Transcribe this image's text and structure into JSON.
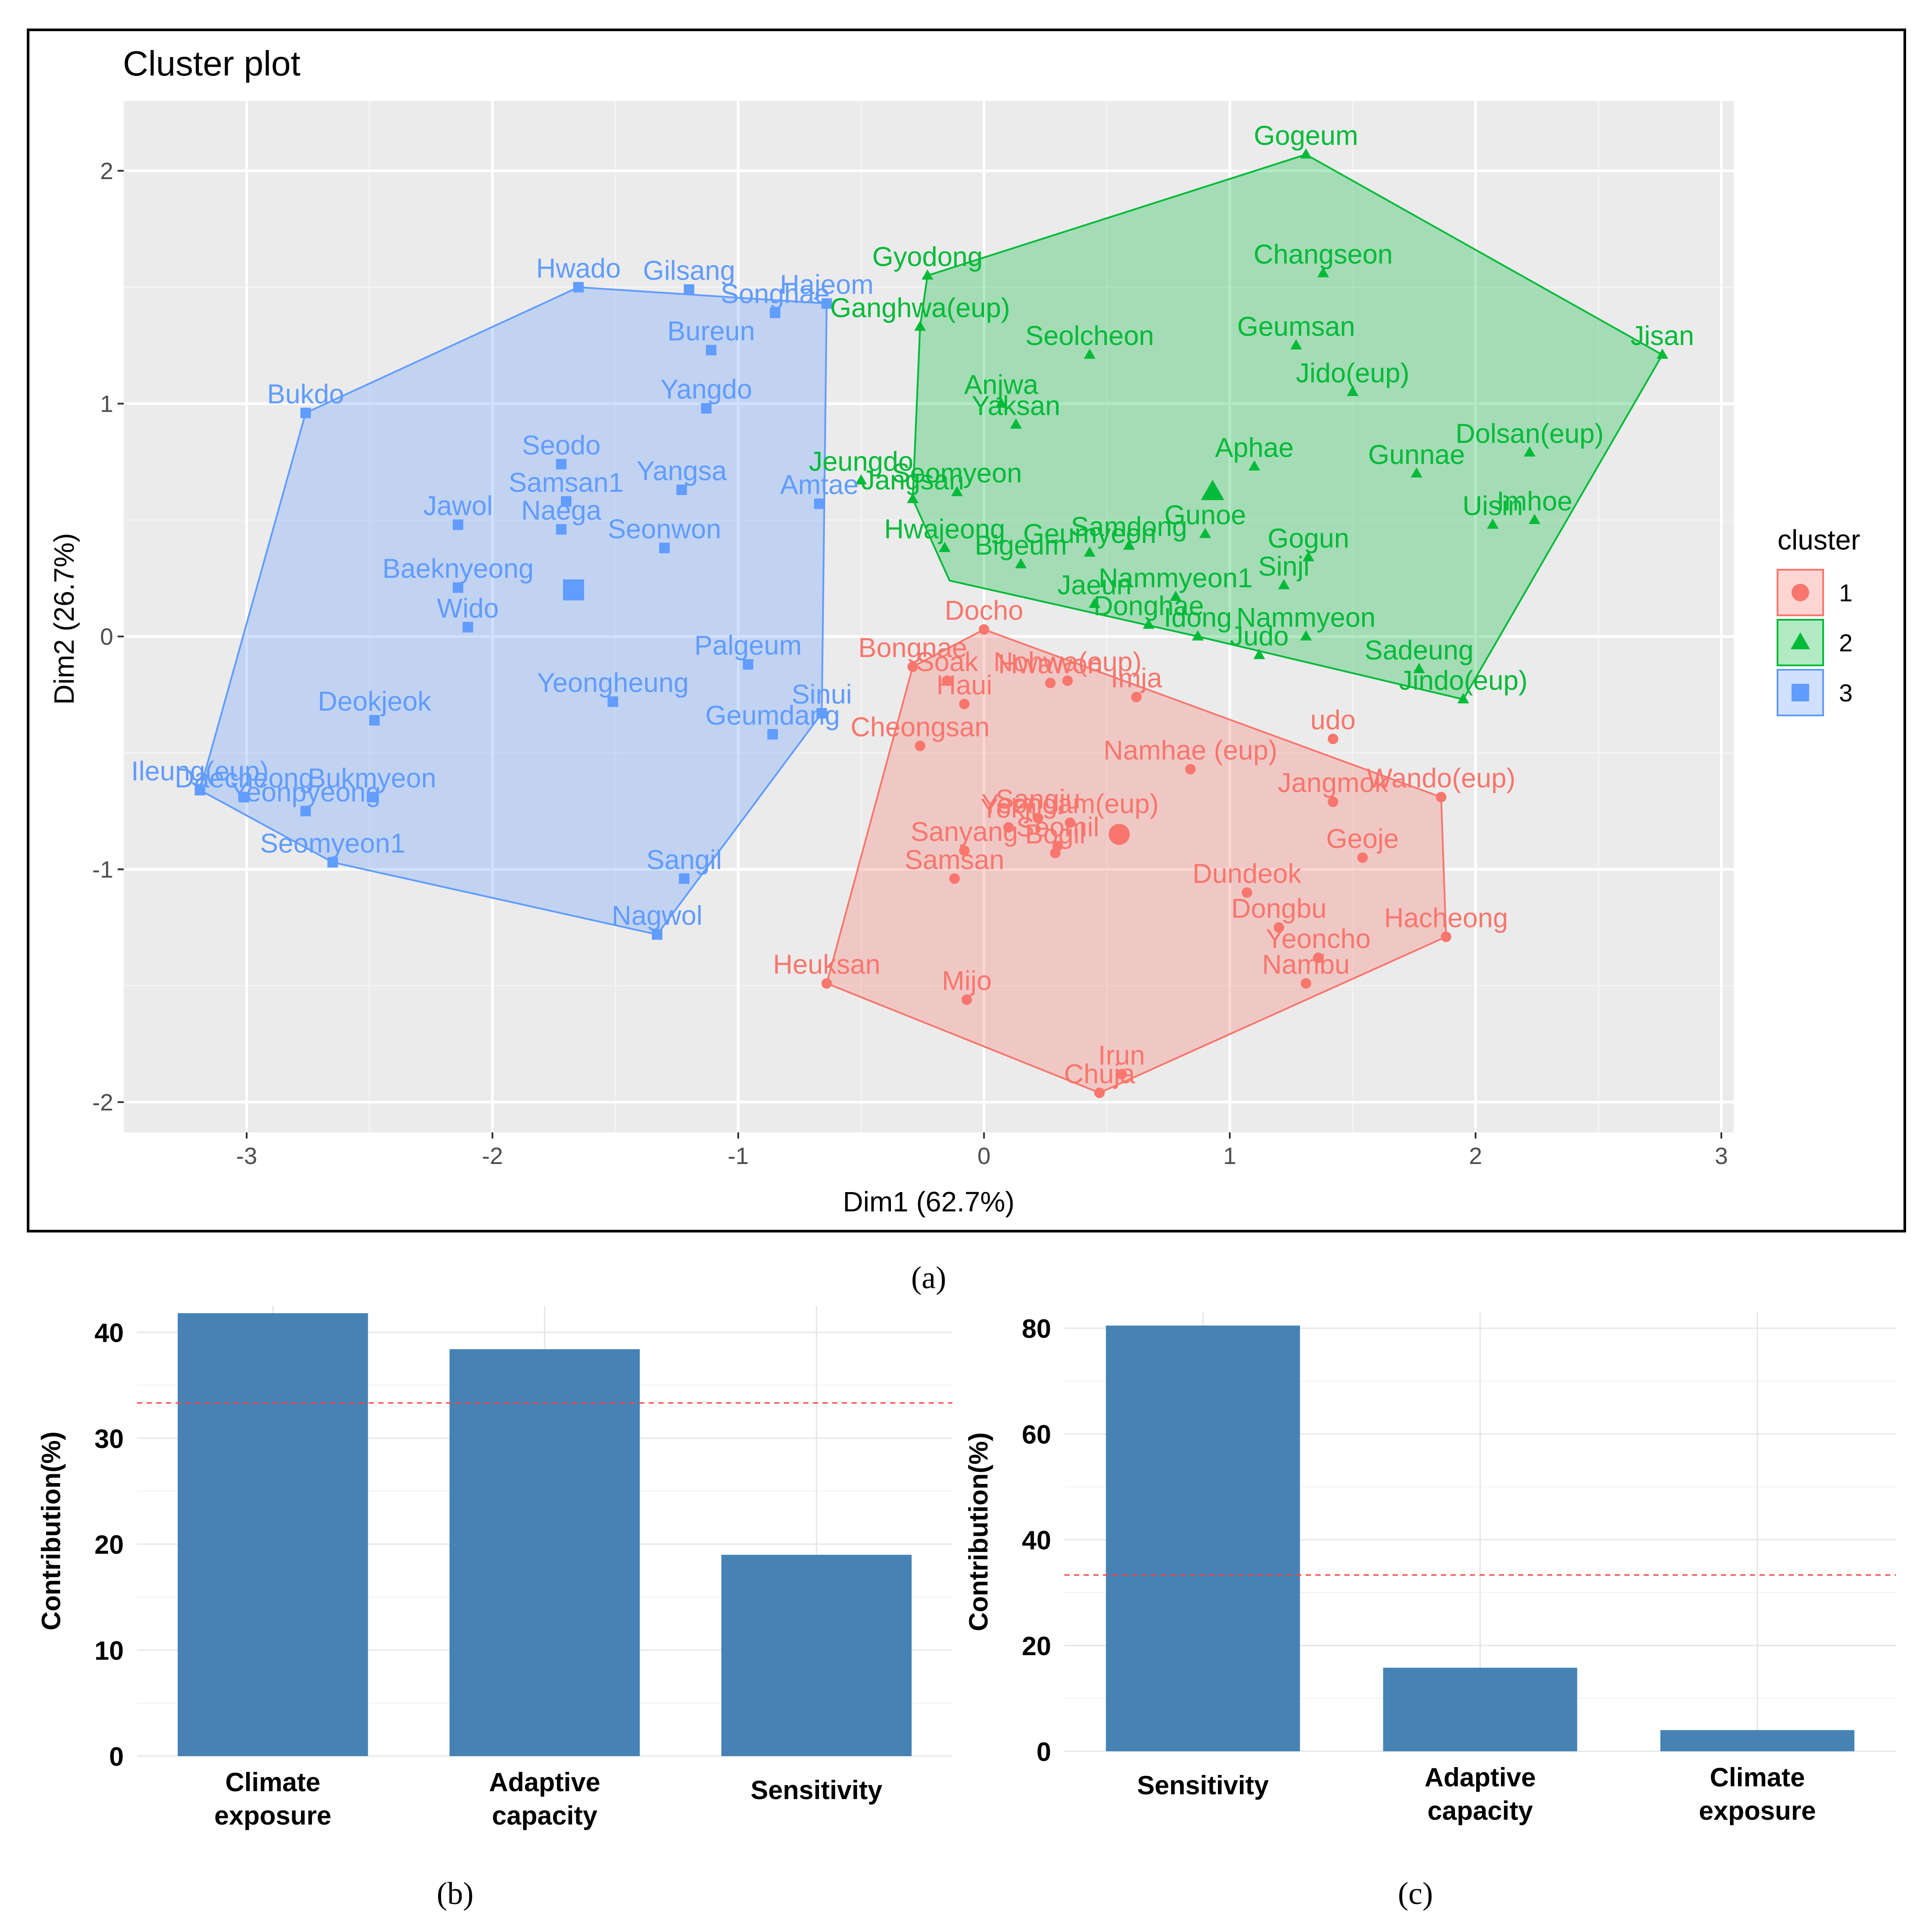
{
  "chart_data": [
    {
      "type": "scatter",
      "panel_label": "(a)",
      "title": "Cluster plot",
      "xlabel": "Dim1 (62.7%)",
      "ylabel": "Dim2 (26.7%)",
      "xlim": [
        -3.5,
        3.05
      ],
      "ylim": [
        -2.13,
        2.3
      ],
      "xticks": [
        -3,
        -2,
        -1,
        0,
        1,
        2,
        3
      ],
      "yticks": [
        -2,
        -1,
        0,
        1,
        2
      ],
      "legend": {
        "title": "cluster",
        "position": "right",
        "entries": [
          "1",
          "2",
          "3"
        ]
      },
      "clusters": [
        {
          "name": "1",
          "color": "#F8766D",
          "center": [
            0.55,
            -0.85
          ],
          "hull": [
            [
              0.0,
              0.03
            ],
            [
              1.86,
              -0.69
            ],
            [
              1.88,
              -1.29
            ],
            [
              0.47,
              -1.96
            ],
            [
              -0.64,
              -1.49
            ],
            [
              -0.29,
              -0.13
            ]
          ],
          "points": [
            {
              "label": "Docho",
              "x": 0.0,
              "y": 0.03
            },
            {
              "label": "Bongnae",
              "x": -0.29,
              "y": -0.13
            },
            {
              "label": "Soak",
              "x": -0.15,
              "y": -0.19
            },
            {
              "label": "Haui",
              "x": -0.08,
              "y": -0.29
            },
            {
              "label": "Hwawon",
              "x": 0.27,
              "y": -0.2
            },
            {
              "label": "Nohwa(eup)",
              "x": 0.34,
              "y": -0.19
            },
            {
              "label": "Imja",
              "x": 0.62,
              "y": -0.26
            },
            {
              "label": "Cheongsan",
              "x": -0.26,
              "y": -0.47
            },
            {
              "label": "Namhae (eup)",
              "x": 0.84,
              "y": -0.57
            },
            {
              "label": "udo",
              "x": 1.42,
              "y": -0.44
            },
            {
              "label": "Jangmok",
              "x": 1.42,
              "y": -0.71
            },
            {
              "label": "Wando(eup)",
              "x": 1.86,
              "y": -0.69
            },
            {
              "label": "Sanyang",
              "x": -0.08,
              "y": -0.92
            },
            {
              "label": "Sangju",
              "x": 0.22,
              "y": -0.78
            },
            {
              "label": "Yeongam(eup)",
              "x": 0.35,
              "y": -0.8
            },
            {
              "label": "Yokji",
              "x": 0.1,
              "y": -0.82
            },
            {
              "label": "Seomil",
              "x": 0.3,
              "y": -0.9
            },
            {
              "label": "Bogil",
              "x": 0.29,
              "y": -0.93
            },
            {
              "label": "Samsan",
              "x": -0.12,
              "y": -1.04
            },
            {
              "label": "Geoje",
              "x": 1.54,
              "y": -0.95
            },
            {
              "label": "Dundeok",
              "x": 1.07,
              "y": -1.1
            },
            {
              "label": "Dongbu",
              "x": 1.2,
              "y": -1.25
            },
            {
              "label": "Yeoncho",
              "x": 1.36,
              "y": -1.38
            },
            {
              "label": "Nambu",
              "x": 1.31,
              "y": -1.49
            },
            {
              "label": "Hacheong",
              "x": 1.88,
              "y": -1.29
            },
            {
              "label": "Heuksan",
              "x": -0.64,
              "y": -1.49
            },
            {
              "label": "Mijo",
              "x": -0.07,
              "y": -1.56
            },
            {
              "label": "Irun",
              "x": 0.56,
              "y": -1.88
            },
            {
              "label": "Chuja",
              "x": 0.47,
              "y": -1.96
            }
          ]
        },
        {
          "name": "2",
          "color": "#00BA38",
          "center": [
            0.93,
            0.62
          ],
          "hull": [
            [
              1.31,
              2.07
            ],
            [
              2.76,
              1.21
            ],
            [
              1.95,
              -0.27
            ],
            [
              0.87,
              0.0
            ],
            [
              -0.14,
              0.24
            ],
            [
              -0.29,
              0.59
            ],
            [
              -0.26,
              1.33
            ],
            [
              -0.23,
              1.55
            ]
          ],
          "points": [
            {
              "label": "Gogeum",
              "x": 1.31,
              "y": 2.07
            },
            {
              "label": "Changseon",
              "x": 1.38,
              "y": 1.56
            },
            {
              "label": "Jisan",
              "x": 2.76,
              "y": 1.21
            },
            {
              "label": "Gyodong",
              "x": -0.23,
              "y": 1.55
            },
            {
              "label": "Ganghwa(eup)",
              "x": -0.26,
              "y": 1.33
            },
            {
              "label": "Seolcheon",
              "x": 0.43,
              "y": 1.21
            },
            {
              "label": "Geumsan",
              "x": 1.27,
              "y": 1.25
            },
            {
              "label": "Jido(eup)",
              "x": 1.5,
              "y": 1.05
            },
            {
              "label": "Anjwa",
              "x": 0.07,
              "y": 1.0
            },
            {
              "label": "Yaksan",
              "x": 0.13,
              "y": 0.91
            },
            {
              "label": "Aphae",
              "x": 1.1,
              "y": 0.73
            },
            {
              "label": "Gunnae",
              "x": 1.76,
              "y": 0.7
            },
            {
              "label": "Dolsan(eup)",
              "x": 2.22,
              "y": 0.79
            },
            {
              "label": "Uisin",
              "x": 2.07,
              "y": 0.48
            },
            {
              "label": "Imhoe",
              "x": 2.24,
              "y": 0.5
            },
            {
              "label": "Jeungdo",
              "x": -0.5,
              "y": 0.67
            },
            {
              "label": "Seomyeon",
              "x": -0.11,
              "y": 0.62
            },
            {
              "label": "Jangsan",
              "x": -0.29,
              "y": 0.59
            },
            {
              "label": "Samdong",
              "x": 0.59,
              "y": 0.39
            },
            {
              "label": "Gunoe",
              "x": 0.9,
              "y": 0.44
            },
            {
              "label": "Gogun",
              "x": 1.32,
              "y": 0.34
            },
            {
              "label": "Geumyeon",
              "x": 0.43,
              "y": 0.36
            },
            {
              "label": "Bigeum",
              "x": 0.15,
              "y": 0.31
            },
            {
              "label": "Hwajeong",
              "x": -0.16,
              "y": 0.38
            },
            {
              "label": "Sinji",
              "x": 1.22,
              "y": 0.22
            },
            {
              "label": "Jaeun",
              "x": 0.45,
              "y": 0.14
            },
            {
              "label": "Nammyeon1",
              "x": 0.78,
              "y": 0.17
            },
            {
              "label": "Donghae",
              "x": 0.67,
              "y": 0.05
            },
            {
              "label": "Idong",
              "x": 0.87,
              "y": 0.0
            },
            {
              "label": "Judo",
              "x": 1.12,
              "y": -0.08
            },
            {
              "label": "Nammyeon",
              "x": 1.31,
              "y": 0.0
            },
            {
              "label": "Sadeung",
              "x": 1.77,
              "y": -0.14
            },
            {
              "label": "Jindo(eup)",
              "x": 1.95,
              "y": -0.27
            }
          ]
        },
        {
          "name": "3",
          "color": "#619CFF",
          "center": [
            -1.67,
            0.2
          ],
          "hull": [
            [
              -1.65,
              1.5
            ],
            [
              -0.64,
              1.43
            ],
            [
              -0.66,
              -0.33
            ],
            [
              -1.33,
              -1.28
            ],
            [
              -2.65,
              -0.97
            ],
            [
              -3.19,
              -0.66
            ],
            [
              -2.76,
              0.96
            ]
          ],
          "points": [
            {
              "label": "Hwado",
              "x": -1.65,
              "y": 1.5
            },
            {
              "label": "Gilsang",
              "x": -1.2,
              "y": 1.49
            },
            {
              "label": "Songhae",
              "x": -0.85,
              "y": 1.39
            },
            {
              "label": "Hajeom",
              "x": -0.64,
              "y": 1.43
            },
            {
              "label": "Bureun",
              "x": -1.11,
              "y": 1.23
            },
            {
              "label": "Yangdo",
              "x": -1.13,
              "y": 0.98
            },
            {
              "label": "Bukdo",
              "x": -2.76,
              "y": 0.96
            },
            {
              "label": "Seodo",
              "x": -1.72,
              "y": 0.74
            },
            {
              "label": "Samsan1",
              "x": -1.7,
              "y": 0.58
            },
            {
              "label": "Yangsa",
              "x": -1.23,
              "y": 0.63
            },
            {
              "label": "Amtae",
              "x": -0.67,
              "y": 0.57
            },
            {
              "label": "Jawol",
              "x": -2.14,
              "y": 0.48
            },
            {
              "label": "Naega",
              "x": -1.72,
              "y": 0.46
            },
            {
              "label": "Seonwon",
              "x": -1.3,
              "y": 0.38
            },
            {
              "label": "Baeknyeong",
              "x": -2.14,
              "y": 0.21
            },
            {
              "label": "Wido",
              "x": -2.1,
              "y": 0.04
            },
            {
              "label": "Palgeum",
              "x": -0.96,
              "y": -0.12
            },
            {
              "label": "Yeongheung",
              "x": -1.51,
              "y": -0.28
            },
            {
              "label": "Sinui",
              "x": -0.66,
              "y": -0.33
            },
            {
              "label": "Geumdang",
              "x": -0.86,
              "y": -0.42
            },
            {
              "label": "Deokjeok",
              "x": -2.48,
              "y": -0.36
            },
            {
              "label": "Ileung(eup)",
              "x": -3.19,
              "y": -0.66
            },
            {
              "label": "Daecheong",
              "x": -3.01,
              "y": -0.69
            },
            {
              "label": "Bukmyeon",
              "x": -2.49,
              "y": -0.69
            },
            {
              "label": "Yeonpyeong",
              "x": -2.76,
              "y": -0.75
            },
            {
              "label": "Seomyeon1",
              "x": -2.65,
              "y": -0.97
            },
            {
              "label": "Sangil",
              "x": -1.22,
              "y": -1.04
            },
            {
              "label": "Nagwol",
              "x": -1.33,
              "y": -1.28
            }
          ]
        }
      ]
    },
    {
      "type": "bar",
      "panel_label": "(b)",
      "categories": [
        "Climate exposure",
        "Adaptive capacity",
        "Sensitivity"
      ],
      "values": [
        41.8,
        38.4,
        19.0
      ],
      "ylabel": "Contribution(%)",
      "ylim": [
        0,
        42.5
      ],
      "yticks": [
        0,
        10,
        20,
        30,
        40
      ],
      "reference_line": 33.33,
      "bar_color": "#4682B4"
    },
    {
      "type": "bar",
      "panel_label": "(c)",
      "categories": [
        "Sensitivity",
        "Adaptive capacity",
        "Climate exposure"
      ],
      "values": [
        80.5,
        15.8,
        4.0
      ],
      "ylabel": "Contribution(%)",
      "ylim": [
        0,
        83
      ],
      "yticks": [
        0,
        20,
        40,
        60,
        80
      ],
      "reference_line": 33.33,
      "bar_color": "#4682B4"
    }
  ]
}
